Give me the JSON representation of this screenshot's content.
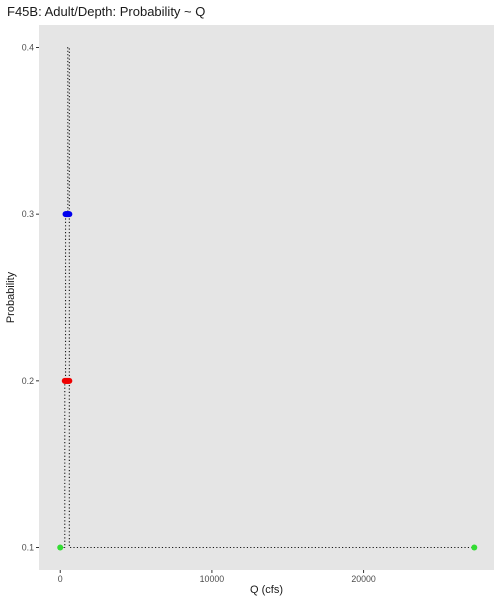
{
  "chart_data": {
    "type": "scatter",
    "title": "F45B: Adult/Depth: Probability ~ Q",
    "xlabel": "Q (cfs)",
    "ylabel": "Probability",
    "xlim": [
      -1400,
      28600
    ],
    "ylim": [
      0.0865,
      0.4135
    ],
    "x_ticks": [
      0,
      10000,
      20000
    ],
    "x_tick_labels": [
      "0",
      "10000",
      "20000"
    ],
    "y_ticks": [
      0.1,
      0.2,
      0.3,
      0.4
    ],
    "y_tick_labels": [
      "0.1",
      "0.2",
      "0.3",
      "0.4"
    ],
    "grid": false,
    "legend": "none",
    "colors": {
      "panel": "#e5e5e5",
      "line": "#1a1a1a",
      "low": "#33dd33",
      "mid": "#ee0000",
      "high": "#0000ee"
    },
    "line_points": [
      {
        "x": 0,
        "y": 0.1
      },
      {
        "x": 300,
        "y": 0.1
      },
      {
        "x": 300,
        "y": 0.2
      },
      {
        "x": 350,
        "y": 0.2
      },
      {
        "x": 350,
        "y": 0.3
      },
      {
        "x": 500,
        "y": 0.3
      },
      {
        "x": 500,
        "y": 0.4
      },
      {
        "x": 600,
        "y": 0.4
      },
      {
        "x": 600,
        "y": 0.1
      },
      {
        "x": 27300,
        "y": 0.1
      }
    ],
    "points": [
      {
        "x": 0,
        "y": 0.1,
        "color": "low"
      },
      {
        "x": 27300,
        "y": 0.1,
        "color": "low"
      },
      {
        "x": 300,
        "y": 0.2,
        "color": "mid"
      },
      {
        "x": 350,
        "y": 0.2,
        "color": "mid"
      },
      {
        "x": 400,
        "y": 0.2,
        "color": "mid"
      },
      {
        "x": 450,
        "y": 0.2,
        "color": "mid"
      },
      {
        "x": 500,
        "y": 0.2,
        "color": "mid"
      },
      {
        "x": 550,
        "y": 0.2,
        "color": "mid"
      },
      {
        "x": 600,
        "y": 0.2,
        "color": "mid"
      },
      {
        "x": 350,
        "y": 0.3,
        "color": "high"
      },
      {
        "x": 400,
        "y": 0.3,
        "color": "high"
      },
      {
        "x": 450,
        "y": 0.3,
        "color": "high"
      },
      {
        "x": 500,
        "y": 0.3,
        "color": "high"
      },
      {
        "x": 550,
        "y": 0.3,
        "color": "high"
      },
      {
        "x": 600,
        "y": 0.3,
        "color": "high"
      }
    ]
  }
}
